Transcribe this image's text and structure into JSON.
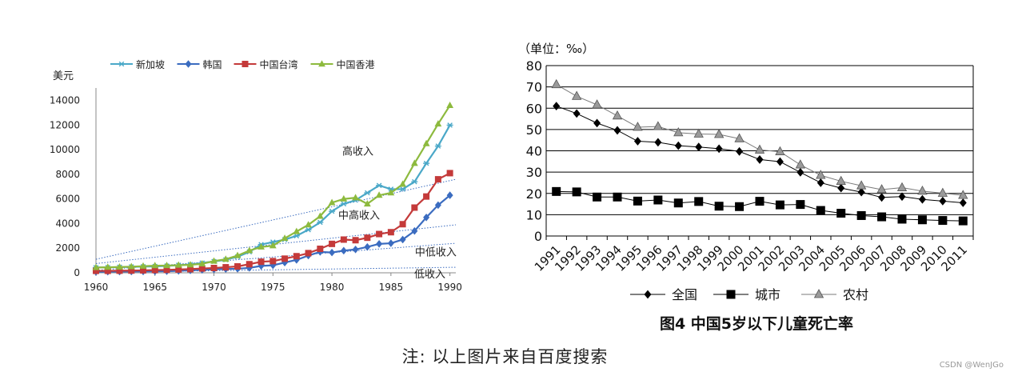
{
  "chart_data": [
    {
      "type": "line",
      "ylabel": "美元",
      "x": [
        1960,
        1961,
        1962,
        1963,
        1964,
        1965,
        1966,
        1967,
        1968,
        1969,
        1970,
        1971,
        1972,
        1973,
        1974,
        1975,
        1976,
        1977,
        1978,
        1979,
        1980,
        1981,
        1982,
        1983,
        1984,
        1985,
        1986,
        1987,
        1988,
        1989,
        1990
      ],
      "xticks": [
        1960,
        1965,
        1970,
        1975,
        1980,
        1985,
        1990
      ],
      "yticks": [
        0,
        2000,
        4000,
        6000,
        8000,
        10000,
        12000,
        14000
      ],
      "ylim": [
        0,
        14500
      ],
      "series": [
        {
          "name": "新加坡",
          "color": "#4aa8c8",
          "marker": "star",
          "values": [
            430,
            440,
            460,
            490,
            500,
            520,
            560,
            620,
            680,
            800,
            920,
            1060,
            1300,
            1700,
            2300,
            2500,
            2700,
            3000,
            3500,
            4100,
            5000,
            5600,
            5900,
            6500,
            7100,
            6800,
            6800,
            7400,
            8900,
            10300,
            12000
          ]
        },
        {
          "name": "韩国",
          "color": "#3b6cc0",
          "marker": "diamond",
          "values": [
            80,
            90,
            100,
            110,
            110,
            120,
            130,
            160,
            200,
            240,
            280,
            310,
            330,
            400,
            560,
            610,
            830,
            1050,
            1400,
            1700,
            1650,
            1800,
            1900,
            2100,
            2350,
            2400,
            2700,
            3400,
            4500,
            5500,
            6300
          ]
        },
        {
          "name": "中国台湾",
          "color": "#c43a3a",
          "marker": "square",
          "values": [
            160,
            160,
            170,
            180,
            200,
            220,
            240,
            270,
            300,
            350,
            390,
            450,
            520,
            700,
            900,
            950,
            1150,
            1350,
            1600,
            1950,
            2350,
            2700,
            2650,
            2850,
            3150,
            3300,
            3950,
            5300,
            6200,
            7600,
            8100
          ]
        },
        {
          "name": "中国香港",
          "color": "#8dba3e",
          "marker": "triangle",
          "values": [
            430,
            450,
            470,
            500,
            540,
            580,
            590,
            620,
            650,
            730,
            950,
            1100,
            1400,
            1800,
            2100,
            2200,
            2800,
            3350,
            3900,
            4600,
            5700,
            6000,
            6100,
            5600,
            6300,
            6500,
            7200,
            8900,
            10500,
            12100,
            13600
          ]
        }
      ],
      "annotations": [
        {
          "text": "高收入",
          "x": 1982.2,
          "y": 9600
        },
        {
          "text": "中高收入",
          "x": 1982.3,
          "y": 4400
        },
        {
          "text": "中低收入",
          "x": 1988.8,
          "y": 1400
        },
        {
          "text": "低收入",
          "x": 1988.3,
          "y": -400
        }
      ],
      "threshold_lines": [
        {
          "from": [
            1960,
            1100
          ],
          "to": [
            1990.5,
            7600
          ]
        },
        {
          "from": [
            1960,
            750
          ],
          "to": [
            1990.5,
            3900
          ]
        },
        {
          "from": [
            1960,
            200
          ],
          "to": [
            1990.5,
            2400
          ]
        },
        {
          "from": [
            1960,
            40
          ],
          "to": [
            1990.5,
            450
          ]
        }
      ]
    },
    {
      "type": "line",
      "title": "图4 中国5岁以下儿童死亡率",
      "unit_label": "（单位：‰）",
      "categories": [
        "1991",
        "1992",
        "1993",
        "1994",
        "1995",
        "1996",
        "1997",
        "1998",
        "1999",
        "2000",
        "2001",
        "2002",
        "2003",
        "2004",
        "2005",
        "2006",
        "2007",
        "2008",
        "2009",
        "2010",
        "2011"
      ],
      "yticks": [
        0,
        10,
        20,
        30,
        40,
        50,
        60,
        70,
        80
      ],
      "ylim": [
        0,
        80
      ],
      "series": [
        {
          "name": "全国",
          "color": "#000000",
          "marker": "diamond",
          "values": [
            61,
            57.5,
            53,
            49.6,
            44.5,
            44,
            42.4,
            41.8,
            41,
            39.7,
            35.9,
            34.9,
            29.9,
            25,
            22.5,
            20.6,
            18.1,
            18.5,
            17.2,
            16.4,
            15.6
          ]
        },
        {
          "name": "城市",
          "color": "#000000",
          "marker": "square",
          "values": [
            20.9,
            20.7,
            18.3,
            18.3,
            16.4,
            16.9,
            15.5,
            16.2,
            14,
            13.8,
            16.3,
            14.6,
            14.8,
            12,
            10.7,
            9.6,
            9,
            7.9,
            7.6,
            7.3,
            7.1
          ]
        },
        {
          "name": "农村",
          "color": "#7a7a7a",
          "marker": "triangle",
          "values": [
            71.1,
            65.6,
            61.6,
            56.4,
            51.1,
            51.4,
            48.5,
            47.9,
            47.7,
            45.7,
            40.4,
            39.6,
            33.4,
            28.5,
            25.7,
            23.6,
            21.8,
            22.7,
            21.1,
            20.1,
            19.1
          ]
        }
      ]
    }
  ],
  "note": "注:  以上图片来自百度搜索",
  "watermark": "CSDN @WenJGo"
}
